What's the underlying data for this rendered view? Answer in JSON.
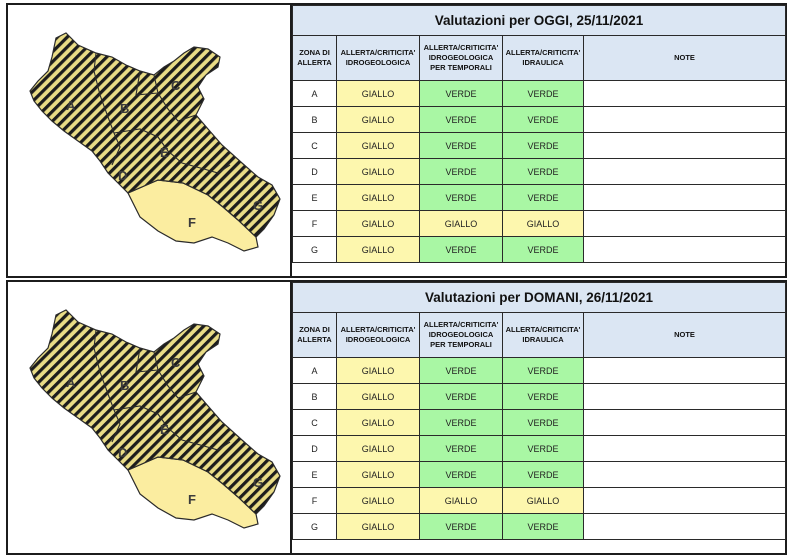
{
  "colors": {
    "giallo": "#fdf7ae",
    "verde": "#a9f7a4",
    "header_bg": "#dbe6f3",
    "map_fill": "#fbeda0",
    "map_stripe": "#1c1c1c"
  },
  "map_zone_labels": [
    "A",
    "B",
    "C",
    "D",
    "E",
    "F",
    "G"
  ],
  "headers": {
    "zona": [
      "ZONA DI",
      "ALLERTA"
    ],
    "idrogeologica": [
      "ALLERTA/CRITICITA'",
      "IDROGEOLOGICA"
    ],
    "temporali": [
      "ALLERTA/CRITICITA'",
      "IDROGEOLOGICA",
      "PER TEMPORALI"
    ],
    "idraulica": [
      "ALLERTA/CRITICITA'",
      "IDRAULICA"
    ],
    "note": "NOTE"
  },
  "panels": [
    {
      "title": "Valutazioni per OGGI, 25/11/2021",
      "rows": [
        {
          "zona": "A",
          "idrogeologica": "GIALLO",
          "temporali": "VERDE",
          "idraulica": "VERDE",
          "note": ""
        },
        {
          "zona": "B",
          "idrogeologica": "GIALLO",
          "temporali": "VERDE",
          "idraulica": "VERDE",
          "note": ""
        },
        {
          "zona": "C",
          "idrogeologica": "GIALLO",
          "temporali": "VERDE",
          "idraulica": "VERDE",
          "note": ""
        },
        {
          "zona": "D",
          "idrogeologica": "GIALLO",
          "temporali": "VERDE",
          "idraulica": "VERDE",
          "note": ""
        },
        {
          "zona": "E",
          "idrogeologica": "GIALLO",
          "temporali": "VERDE",
          "idraulica": "VERDE",
          "note": ""
        },
        {
          "zona": "F",
          "idrogeologica": "GIALLO",
          "temporali": "GIALLO",
          "idraulica": "GIALLO",
          "note": ""
        },
        {
          "zona": "G",
          "idrogeologica": "GIALLO",
          "temporali": "VERDE",
          "idraulica": "VERDE",
          "note": ""
        }
      ]
    },
    {
      "title": "Valutazioni per DOMANI, 26/11/2021",
      "rows": [
        {
          "zona": "A",
          "idrogeologica": "GIALLO",
          "temporali": "VERDE",
          "idraulica": "VERDE",
          "note": ""
        },
        {
          "zona": "B",
          "idrogeologica": "GIALLO",
          "temporali": "VERDE",
          "idraulica": "VERDE",
          "note": ""
        },
        {
          "zona": "C",
          "idrogeologica": "GIALLO",
          "temporali": "VERDE",
          "idraulica": "VERDE",
          "note": ""
        },
        {
          "zona": "D",
          "idrogeologica": "GIALLO",
          "temporali": "VERDE",
          "idraulica": "VERDE",
          "note": ""
        },
        {
          "zona": "E",
          "idrogeologica": "GIALLO",
          "temporali": "VERDE",
          "idraulica": "VERDE",
          "note": ""
        },
        {
          "zona": "F",
          "idrogeologica": "GIALLO",
          "temporali": "GIALLO",
          "idraulica": "GIALLO",
          "note": ""
        },
        {
          "zona": "G",
          "idrogeologica": "GIALLO",
          "temporali": "VERDE",
          "idraulica": "VERDE",
          "note": ""
        }
      ]
    }
  ]
}
